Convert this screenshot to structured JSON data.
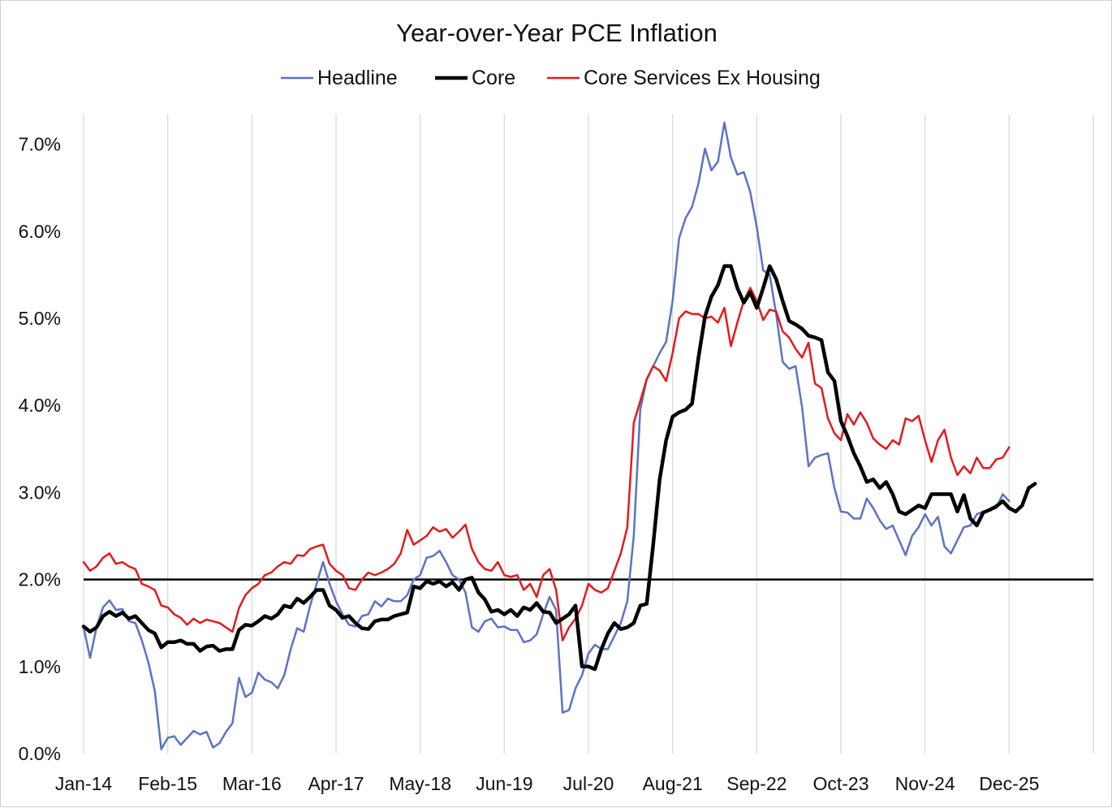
{
  "chart_data": {
    "type": "line",
    "title": "Year-over-Year PCE Inflation",
    "xlabel": "",
    "ylabel": "",
    "x_tick_labels": [
      "Jan-14",
      "Feb-15",
      "Mar-16",
      "Apr-17",
      "May-18",
      "Jun-19",
      "Jul-20",
      "Aug-21",
      "Sep-22",
      "Oct-23",
      "Nov-24",
      "Dec-25"
    ],
    "x_tick_month_index": [
      0,
      13,
      26,
      39,
      52,
      65,
      78,
      91,
      104,
      117,
      130,
      143
    ],
    "x_range_months": [
      0,
      156
    ],
    "y_tick_labels": [
      "0.0%",
      "1.0%",
      "2.0%",
      "3.0%",
      "4.0%",
      "5.0%",
      "6.0%",
      "7.0%"
    ],
    "y_ticks": [
      0,
      1,
      2,
      3,
      4,
      5,
      6,
      7
    ],
    "ylim": [
      0,
      7.3
    ],
    "reference_line": 2.0,
    "grid": "vertical",
    "legend_position": "top-center",
    "start_month": "Jan-14",
    "series": [
      {
        "name": "Headline",
        "color": "#5B73C4",
        "width": 2.5,
        "values": [
          1.45,
          1.1,
          1.45,
          1.68,
          1.76,
          1.65,
          1.66,
          1.52,
          1.5,
          1.3,
          1.05,
          0.72,
          0.05,
          0.18,
          0.2,
          0.1,
          0.18,
          0.26,
          0.22,
          0.25,
          0.07,
          0.12,
          0.25,
          0.35,
          0.87,
          0.65,
          0.7,
          0.93,
          0.85,
          0.82,
          0.75,
          0.9,
          1.2,
          1.44,
          1.4,
          1.7,
          1.95,
          2.2,
          1.95,
          1.75,
          1.6,
          1.48,
          1.46,
          1.58,
          1.6,
          1.75,
          1.69,
          1.78,
          1.75,
          1.75,
          1.82,
          2.0,
          2.05,
          2.25,
          2.27,
          2.33,
          2.2,
          2.05,
          2.0,
          1.85,
          1.45,
          1.4,
          1.52,
          1.55,
          1.45,
          1.46,
          1.42,
          1.42,
          1.28,
          1.3,
          1.37,
          1.6,
          1.8,
          1.65,
          0.47,
          0.5,
          0.75,
          0.9,
          1.15,
          1.25,
          1.2,
          1.2,
          1.35,
          1.5,
          1.75,
          2.5,
          3.95,
          4.3,
          4.45,
          4.6,
          4.73,
          5.2,
          5.92,
          6.15,
          6.28,
          6.55,
          6.95,
          6.7,
          6.8,
          7.25,
          6.85,
          6.65,
          6.68,
          6.45,
          6.05,
          5.55,
          5.5,
          5.05,
          4.5,
          4.42,
          4.45,
          3.98,
          3.3,
          3.4,
          3.43,
          3.45,
          3.05,
          2.78,
          2.77,
          2.7,
          2.7,
          2.93,
          2.82,
          2.68,
          2.58,
          2.62,
          2.45,
          2.28,
          2.5,
          2.6,
          2.75,
          2.62,
          2.72,
          2.38,
          2.3,
          2.45,
          2.6,
          2.62,
          2.75,
          2.78,
          2.8,
          2.82,
          2.98,
          2.9
        ]
      },
      {
        "name": "Core",
        "color": "#000000",
        "width": 4.5,
        "values": [
          1.46,
          1.4,
          1.45,
          1.58,
          1.63,
          1.58,
          1.62,
          1.55,
          1.58,
          1.5,
          1.42,
          1.38,
          1.22,
          1.28,
          1.28,
          1.3,
          1.26,
          1.26,
          1.18,
          1.23,
          1.24,
          1.18,
          1.2,
          1.2,
          1.42,
          1.48,
          1.47,
          1.52,
          1.58,
          1.55,
          1.6,
          1.7,
          1.68,
          1.78,
          1.73,
          1.8,
          1.88,
          1.88,
          1.7,
          1.65,
          1.56,
          1.58,
          1.5,
          1.44,
          1.43,
          1.52,
          1.54,
          1.54,
          1.58,
          1.6,
          1.62,
          1.92,
          1.9,
          1.98,
          1.95,
          1.98,
          1.92,
          1.97,
          1.88,
          2.0,
          2.02,
          1.85,
          1.77,
          1.63,
          1.65,
          1.6,
          1.65,
          1.58,
          1.68,
          1.65,
          1.73,
          1.63,
          1.62,
          1.5,
          1.55,
          1.6,
          1.7,
          1.0,
          1.0,
          0.97,
          1.2,
          1.38,
          1.5,
          1.43,
          1.45,
          1.5,
          1.7,
          1.72,
          2.4,
          3.15,
          3.6,
          3.87,
          3.92,
          3.95,
          4.02,
          4.55,
          5.02,
          5.25,
          5.38,
          5.6,
          5.6,
          5.35,
          5.18,
          5.3,
          5.12,
          5.35,
          5.6,
          5.45,
          5.2,
          4.97,
          4.93,
          4.88,
          4.8,
          4.78,
          4.75,
          4.38,
          4.28,
          3.82,
          3.65,
          3.45,
          3.3,
          3.12,
          3.15,
          3.05,
          3.12,
          2.98,
          2.78,
          2.75,
          2.8,
          2.85,
          2.82,
          2.98,
          2.98,
          2.98,
          2.98,
          2.78,
          2.97,
          2.7,
          2.62,
          2.77,
          2.8,
          2.84,
          2.9,
          2.82,
          2.78,
          2.85,
          3.05,
          3.1
        ]
      },
      {
        "name": "Core Services Ex Housing",
        "color": "#E41A1C",
        "width": 2.5,
        "values": [
          2.2,
          2.1,
          2.15,
          2.25,
          2.3,
          2.18,
          2.2,
          2.15,
          2.12,
          1.95,
          1.92,
          1.88,
          1.7,
          1.68,
          1.6,
          1.56,
          1.48,
          1.55,
          1.5,
          1.54,
          1.52,
          1.5,
          1.45,
          1.4,
          1.67,
          1.82,
          1.9,
          1.95,
          2.05,
          2.08,
          2.15,
          2.2,
          2.18,
          2.28,
          2.27,
          2.35,
          2.38,
          2.4,
          2.18,
          2.1,
          2.05,
          1.9,
          1.88,
          2.0,
          2.08,
          2.05,
          2.08,
          2.12,
          2.18,
          2.3,
          2.57,
          2.4,
          2.45,
          2.5,
          2.6,
          2.55,
          2.58,
          2.48,
          2.55,
          2.63,
          2.35,
          2.2,
          2.12,
          2.1,
          2.2,
          2.05,
          2.03,
          2.05,
          1.88,
          1.95,
          1.8,
          2.05,
          2.12,
          1.88,
          1.3,
          1.45,
          1.55,
          1.7,
          1.95,
          1.88,
          1.85,
          1.9,
          2.1,
          2.3,
          2.6,
          3.8,
          4.05,
          4.3,
          4.45,
          4.4,
          4.28,
          4.6,
          5.0,
          5.08,
          5.05,
          5.05,
          5.0,
          5.02,
          4.95,
          5.12,
          4.68,
          4.95,
          5.2,
          5.35,
          5.2,
          4.98,
          5.1,
          5.08,
          4.85,
          4.78,
          4.65,
          4.55,
          4.72,
          4.25,
          4.2,
          3.85,
          3.68,
          3.6,
          3.9,
          3.78,
          3.92,
          3.8,
          3.62,
          3.55,
          3.5,
          3.6,
          3.55,
          3.85,
          3.82,
          3.88,
          3.6,
          3.35,
          3.6,
          3.72,
          3.4,
          3.2,
          3.3,
          3.22,
          3.4,
          3.28,
          3.28,
          3.38,
          3.4,
          3.52
        ]
      }
    ]
  }
}
